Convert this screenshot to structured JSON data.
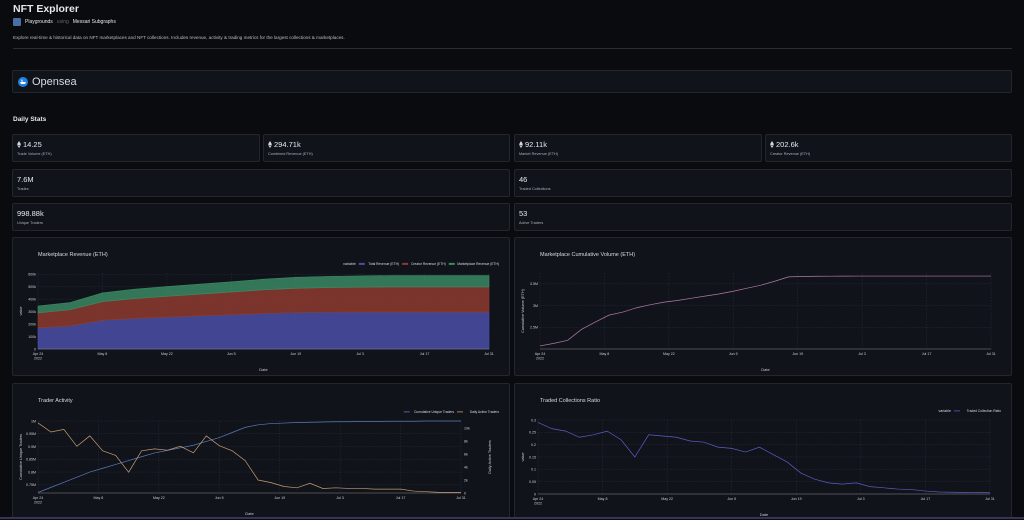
{
  "header": {
    "title": "NFT Explorer",
    "brand": "Playgrounds",
    "using": "using",
    "source": "Messari Subgraphs",
    "description": "Explore real-time & historical data on NFT marketplaces and NFT collections. Includes revenue, activity & trading metrics for the largest collections & marketplaces."
  },
  "marketplace": {
    "name": "Opensea",
    "icon": "opensea-logo"
  },
  "daily_stats": {
    "heading": "Daily Stats",
    "cards": [
      {
        "value": "14.25",
        "label": "Trade Volume (ETH)",
        "icon": "eth-icon"
      },
      {
        "value": "294.71k",
        "label": "Combined Revenue (ETH)",
        "icon": "eth-icon"
      },
      {
        "value": "92.11k",
        "label": "Market Revenue (ETH)",
        "icon": "eth-icon"
      },
      {
        "value": "202.6k",
        "label": "Creator Revenue (ETH)",
        "icon": "eth-icon"
      },
      {
        "value": "7.6M",
        "label": "Trades"
      },
      {
        "value": "46",
        "label": "Traded Collections"
      },
      {
        "value": "998.88k",
        "label": "Unique Traders"
      },
      {
        "value": "53",
        "label": "Active Traders"
      }
    ]
  },
  "chart_data": [
    {
      "type": "area",
      "title": "Marketplace Revenue (ETH)",
      "xlabel": "Date",
      "ylabel": "value",
      "stacked": true,
      "legend_title": "variable",
      "legend": "top-right",
      "grid": true,
      "x": [
        "2022-04-24",
        "2022-05-01",
        "2022-05-08",
        "2022-05-15",
        "2022-05-22",
        "2022-05-29",
        "2022-06-05",
        "2022-06-12",
        "2022-06-19",
        "2022-06-26",
        "2022-07-03",
        "2022-07-10",
        "2022-07-17",
        "2022-07-24",
        "2022-07-31"
      ],
      "series": [
        {
          "name": "Total Revenue (ETH)",
          "color": "#4a4fa8",
          "values": [
            170000,
            185000,
            230000,
            245000,
            255000,
            265000,
            275000,
            285000,
            292000,
            295000,
            296000,
            296000,
            296000,
            296000,
            296000
          ]
        },
        {
          "name": "Creator Revenue (ETH)",
          "color": "#8e3b2f",
          "values": [
            120000,
            130000,
            150000,
            160000,
            168000,
            175000,
            182000,
            190000,
            195000,
            198000,
            200000,
            202000,
            202000,
            202000,
            202000
          ]
        },
        {
          "name": "Marketplace Revenue (ETH)",
          "color": "#3b8a64",
          "values": [
            55000,
            58000,
            70000,
            75000,
            78000,
            80000,
            82000,
            85000,
            88000,
            90000,
            91000,
            92000,
            92000,
            92000,
            92000
          ]
        }
      ],
      "ylim": [
        0,
        610000
      ],
      "yticks": [
        0,
        100000,
        200000,
        300000,
        400000,
        500000,
        600000
      ],
      "ytick_labels": [
        "0",
        "100k",
        "200k",
        "300k",
        "400k",
        "500k",
        "600k"
      ],
      "xticks": [
        "2022-04-24",
        "2022-05-08",
        "2022-05-22",
        "2022-06-05",
        "2022-06-19",
        "2022-07-03",
        "2022-07-17",
        "2022-07-31"
      ],
      "xtick_labels": [
        "Apr 24\n2022",
        "May 8",
        "May 22",
        "Jun 5",
        "Jun 19",
        "Jul 3",
        "Jul 17",
        "Jul 31"
      ]
    },
    {
      "type": "line",
      "title": "Marketplace Cumulative Volume (ETH)",
      "xlabel": "Date",
      "ylabel": "Cumulative Volume (ETH)",
      "grid": true,
      "x": [
        "2022-04-24",
        "2022-04-27",
        "2022-04-30",
        "2022-05-03",
        "2022-05-06",
        "2022-05-09",
        "2022-05-12",
        "2022-05-15",
        "2022-05-18",
        "2022-05-21",
        "2022-05-24",
        "2022-05-27",
        "2022-05-30",
        "2022-06-02",
        "2022-06-05",
        "2022-06-08",
        "2022-06-11",
        "2022-06-14",
        "2022-06-17",
        "2022-06-20",
        "2022-06-23",
        "2022-06-26",
        "2022-06-29",
        "2022-07-02",
        "2022-07-05",
        "2022-07-08",
        "2022-07-11",
        "2022-07-14",
        "2022-07-17",
        "2022-07-20",
        "2022-07-23",
        "2022-07-26",
        "2022-07-29",
        "2022-07-31"
      ],
      "series": [
        {
          "color": "#b57aa6",
          "values": [
            2070000,
            2130000,
            2200000,
            2450000,
            2620000,
            2780000,
            2850000,
            2950000,
            3020000,
            3080000,
            3120000,
            3170000,
            3220000,
            3270000,
            3330000,
            3400000,
            3470000,
            3560000,
            3660000,
            3670000,
            3675000,
            3677000,
            3678000,
            3679000,
            3680000,
            3680000,
            3680000,
            3680000,
            3680000,
            3680000,
            3680000,
            3680000,
            3680000,
            3680000
          ]
        }
      ],
      "ylim": [
        2000000,
        3750000
      ],
      "yticks": [
        2500000,
        3000000,
        3500000
      ],
      "ytick_labels": [
        "2.5M",
        "3M",
        "3.5M"
      ],
      "xticks": [
        "2022-04-24",
        "2022-05-08",
        "2022-05-22",
        "2022-06-05",
        "2022-06-19",
        "2022-07-03",
        "2022-07-17",
        "2022-07-31"
      ],
      "xtick_labels": [
        "Apr 24\n2022",
        "May 8",
        "May 22",
        "Jun 5",
        "Jun 19",
        "Jul 3",
        "Jul 17",
        "Jul 31"
      ]
    },
    {
      "type": "line",
      "title": "Trader Activity",
      "xlabel": "Date",
      "ylabel": "Cumulative Unique Traders",
      "ylabel_right": "Daily Active Traders",
      "legend": "top-right",
      "grid": true,
      "x": [
        "2022-04-24",
        "2022-04-27",
        "2022-04-30",
        "2022-05-03",
        "2022-05-06",
        "2022-05-09",
        "2022-05-12",
        "2022-05-15",
        "2022-05-18",
        "2022-05-21",
        "2022-05-24",
        "2022-05-27",
        "2022-05-30",
        "2022-06-02",
        "2022-06-05",
        "2022-06-08",
        "2022-06-11",
        "2022-06-14",
        "2022-06-17",
        "2022-06-20",
        "2022-06-23",
        "2022-06-26",
        "2022-06-29",
        "2022-07-02",
        "2022-07-05",
        "2022-07-08",
        "2022-07-11",
        "2022-07-14",
        "2022-07-17",
        "2022-07-20",
        "2022-07-23",
        "2022-07-26",
        "2022-07-29",
        "2022-07-31"
      ],
      "series": [
        {
          "name": "Cumulative Unique Traders",
          "axis": "left",
          "color": "#5b7bb8",
          "values": [
            720000,
            740000,
            760000,
            780000,
            800000,
            815000,
            830000,
            845000,
            860000,
            875000,
            885000,
            895000,
            905000,
            920000,
            935000,
            955000,
            975000,
            985000,
            990000,
            992000,
            994000,
            995000,
            996000,
            997000,
            997000,
            998000,
            998000,
            999000,
            999000,
            999000,
            1000000,
            1000000,
            1000000,
            1000000
          ]
        },
        {
          "name": "Daily Active Traders",
          "axis": "right",
          "color": "#c99b72",
          "values": [
            10800,
            9400,
            9800,
            7200,
            8800,
            6500,
            5800,
            3200,
            6500,
            6800,
            6600,
            7200,
            6200,
            8800,
            7300,
            6500,
            5000,
            2000,
            1600,
            1000,
            800,
            1500,
            700,
            800,
            700,
            700,
            600,
            600,
            600,
            300,
            200,
            100,
            100,
            100
          ]
        }
      ],
      "ylim": [
        718000,
        1000000
      ],
      "yticks": [
        750000,
        800000,
        850000,
        900000,
        950000,
        1000000
      ],
      "ytick_labels": [
        "0.75M",
        "0.8M",
        "0.85M",
        "0.9M",
        "0.95M",
        "1M"
      ],
      "ylim_right": [
        0,
        11100
      ],
      "yticks_right": [
        0,
        2000,
        4000,
        6000,
        8000,
        10000
      ],
      "ytick_labels_right": [
        "0",
        "2k",
        "4k",
        "6k",
        "8k",
        "10k"
      ],
      "xticks": [
        "2022-04-24",
        "2022-05-08",
        "2022-05-22",
        "2022-06-05",
        "2022-06-19",
        "2022-07-03",
        "2022-07-17",
        "2022-07-31"
      ],
      "xtick_labels": [
        "Apr 24\n2022",
        "May 8",
        "May 22",
        "Jun 5",
        "Jun 19",
        "Jul 3",
        "Jul 17",
        "Jul 31"
      ]
    },
    {
      "type": "line",
      "title": "Traded Collections Ratio",
      "xlabel": "Date",
      "ylabel": "value",
      "legend_title": "variable",
      "legend": "top-right",
      "grid": true,
      "x": [
        "2022-04-24",
        "2022-04-27",
        "2022-04-30",
        "2022-05-03",
        "2022-05-06",
        "2022-05-09",
        "2022-05-12",
        "2022-05-15",
        "2022-05-18",
        "2022-05-21",
        "2022-05-24",
        "2022-05-27",
        "2022-05-30",
        "2022-06-02",
        "2022-06-05",
        "2022-06-08",
        "2022-06-11",
        "2022-06-14",
        "2022-06-17",
        "2022-06-20",
        "2022-06-23",
        "2022-06-26",
        "2022-06-29",
        "2022-07-02",
        "2022-07-05",
        "2022-07-08",
        "2022-07-11",
        "2022-07-14",
        "2022-07-17",
        "2022-07-20",
        "2022-07-23",
        "2022-07-26",
        "2022-07-29",
        "2022-07-31"
      ],
      "series": [
        {
          "name": "Traded Collection Ratio",
          "color": "#5a5ec6",
          "values": [
            0.29,
            0.265,
            0.255,
            0.23,
            0.24,
            0.255,
            0.22,
            0.15,
            0.24,
            0.235,
            0.23,
            0.215,
            0.21,
            0.19,
            0.185,
            0.17,
            0.19,
            0.16,
            0.13,
            0.085,
            0.06,
            0.045,
            0.04,
            0.045,
            0.03,
            0.025,
            0.02,
            0.018,
            0.012,
            0.008,
            0.007,
            0.006,
            0.006,
            0.005
          ]
        }
      ],
      "ylim": [
        0,
        0.3
      ],
      "yticks": [
        0,
        0.05,
        0.1,
        0.15,
        0.2,
        0.25,
        0.3
      ],
      "ytick_labels": [
        "0",
        "0.05",
        "0.1",
        "0.15",
        "0.2",
        "0.25",
        "0.3"
      ],
      "xticks": [
        "2022-04-24",
        "2022-05-08",
        "2022-05-22",
        "2022-06-05",
        "2022-06-19",
        "2022-07-03",
        "2022-07-17",
        "2022-07-31"
      ],
      "xtick_labels": [
        "Apr 24\n2022",
        "May 8",
        "May 22",
        "Jun 5",
        "Jun 19",
        "Jul 3",
        "Jul 17",
        "Jul 31"
      ]
    }
  ]
}
